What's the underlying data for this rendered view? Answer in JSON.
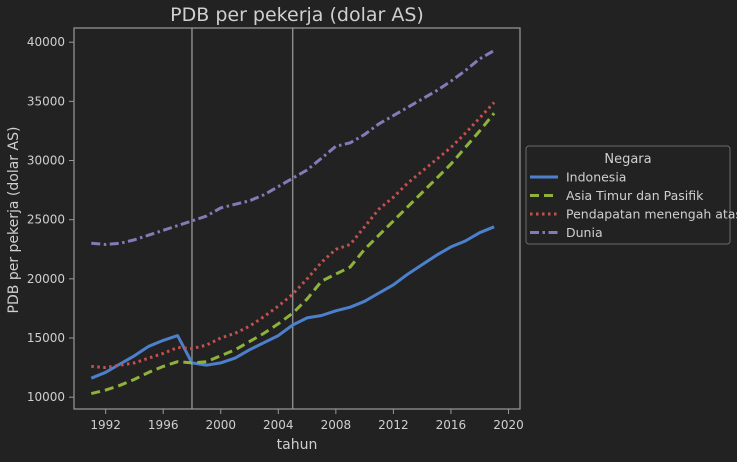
{
  "chart_data": {
    "type": "line",
    "title": "PDB per pekerja (dolar AS)",
    "xlabel": "tahun",
    "ylabel": "PDB per pekerja (dolar AS)",
    "xlim": [
      1989.8,
      2020.8
    ],
    "ylim": [
      9000,
      41200
    ],
    "xticks": [
      1992,
      1996,
      2000,
      2004,
      2008,
      2012,
      2016,
      2020
    ],
    "yticks": [
      10000,
      15000,
      20000,
      25000,
      30000,
      35000,
      40000
    ],
    "vlines": [
      1998,
      2005
    ],
    "grid": false,
    "legend": {
      "title": "Negara",
      "placement": "right-outside"
    },
    "x": [
      1991,
      1992,
      1993,
      1994,
      1995,
      1996,
      1997,
      1998,
      1999,
      2000,
      2001,
      2002,
      2003,
      2004,
      2005,
      2006,
      2007,
      2008,
      2009,
      2010,
      2011,
      2012,
      2013,
      2014,
      2015,
      2016,
      2017,
      2018,
      2019
    ],
    "series": [
      {
        "name": "Indonesia",
        "color": "#4c80cc",
        "dash": "solid",
        "values": [
          11600,
          12100,
          12800,
          13500,
          14300,
          14800,
          15200,
          12900,
          12700,
          12900,
          13300,
          14000,
          14600,
          15200,
          16100,
          16700,
          16900,
          17300,
          17600,
          18100,
          18800,
          19500,
          20400,
          21200,
          22000,
          22700,
          23200,
          23900,
          24400
        ]
      },
      {
        "name": "Asia Timur dan Pasifik",
        "color": "#8fb23a",
        "dash": "dashed",
        "values": [
          10300,
          10600,
          11000,
          11500,
          12100,
          12600,
          13000,
          12900,
          13000,
          13500,
          14000,
          14700,
          15400,
          16200,
          17100,
          18300,
          19800,
          20400,
          21000,
          22500,
          23700,
          24900,
          26100,
          27300,
          28500,
          29700,
          31100,
          32500,
          34000
        ]
      },
      {
        "name": "Pendapatan menengah atas",
        "color": "#c65050",
        "dash": "dotted",
        "values": [
          12600,
          12500,
          12700,
          12900,
          13300,
          13700,
          14200,
          14100,
          14400,
          15000,
          15400,
          16000,
          16800,
          17700,
          18700,
          20000,
          21400,
          22500,
          22900,
          24400,
          25900,
          26900,
          28100,
          29100,
          30100,
          31100,
          32300,
          33600,
          34900
        ]
      },
      {
        "name": "Dunia",
        "color": "#8778b8",
        "dash": "dashdot",
        "values": [
          23000,
          22900,
          23000,
          23300,
          23700,
          24100,
          24500,
          24900,
          25300,
          26000,
          26300,
          26600,
          27100,
          27800,
          28500,
          29200,
          30200,
          31200,
          31500,
          32200,
          33100,
          33800,
          34500,
          35200,
          35900,
          36700,
          37600,
          38600,
          39300
        ]
      }
    ]
  }
}
